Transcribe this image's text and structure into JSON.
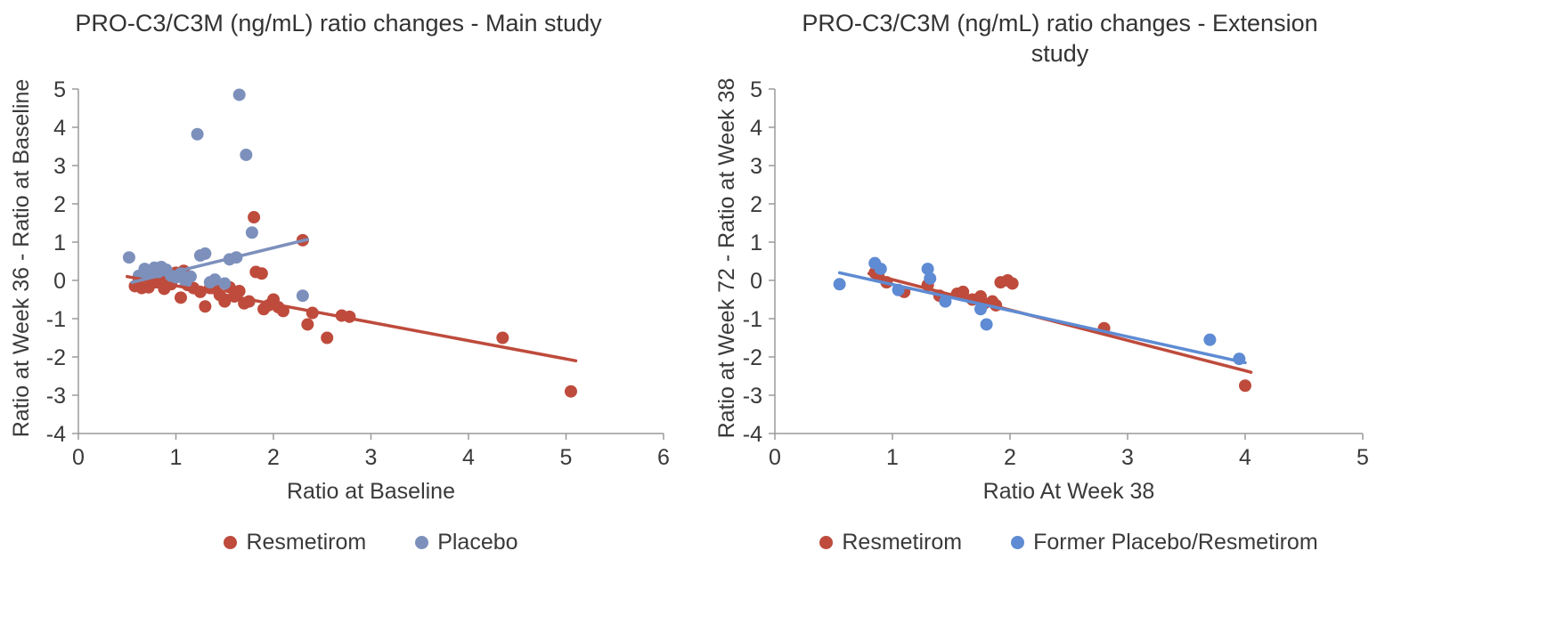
{
  "chart_data": [
    {
      "type": "scatter",
      "title": "PRO-C3/C3M (ng/mL) ratio changes - Main study",
      "xlabel": "Ratio at Baseline",
      "ylabel": "Ratio at Week 36 - Ratio at Baseline",
      "xlim": [
        0,
        6
      ],
      "ylim": [
        -4,
        5
      ],
      "xticks": [
        0,
        1,
        2,
        3,
        4,
        5,
        6
      ],
      "yticks": [
        5,
        4,
        3,
        2,
        1,
        0,
        -1,
        -2,
        -3,
        -4
      ],
      "grid": false,
      "legend_position": "bottom",
      "series": [
        {
          "name": "Resmetirom",
          "color": "#BE4B3C",
          "points": [
            [
              0.58,
              -0.15
            ],
            [
              0.62,
              0.05
            ],
            [
              0.65,
              -0.2
            ],
            [
              0.7,
              0.1
            ],
            [
              0.72,
              -0.18
            ],
            [
              0.78,
              0.28
            ],
            [
              0.8,
              -0.05
            ],
            [
              0.85,
              0.15
            ],
            [
              0.88,
              -0.22
            ],
            [
              0.92,
              0.05
            ],
            [
              0.95,
              -0.1
            ],
            [
              1.0,
              0.2
            ],
            [
              1.05,
              -0.45
            ],
            [
              1.08,
              0.25
            ],
            [
              1.12,
              -0.12
            ],
            [
              1.18,
              -0.2
            ],
            [
              1.25,
              -0.3
            ],
            [
              1.3,
              -0.68
            ],
            [
              1.35,
              -0.2
            ],
            [
              1.42,
              -0.1
            ],
            [
              1.45,
              -0.38
            ],
            [
              1.5,
              -0.55
            ],
            [
              1.55,
              -0.18
            ],
            [
              1.6,
              -0.42
            ],
            [
              1.65,
              -0.28
            ],
            [
              1.7,
              -0.6
            ],
            [
              1.75,
              -0.55
            ],
            [
              1.8,
              1.65
            ],
            [
              1.82,
              0.22
            ],
            [
              1.88,
              0.18
            ],
            [
              1.9,
              -0.75
            ],
            [
              1.95,
              -0.65
            ],
            [
              2.0,
              -0.5
            ],
            [
              2.05,
              -0.7
            ],
            [
              2.1,
              -0.8
            ],
            [
              2.3,
              1.05
            ],
            [
              2.35,
              -1.15
            ],
            [
              2.4,
              -0.85
            ],
            [
              2.55,
              -1.5
            ],
            [
              2.7,
              -0.92
            ],
            [
              2.78,
              -0.95
            ],
            [
              4.35,
              -1.5
            ],
            [
              5.05,
              -2.9
            ]
          ],
          "trend": [
            [
              0.5,
              0.1
            ],
            [
              5.1,
              -2.1
            ]
          ]
        },
        {
          "name": "Placebo",
          "color": "#7D90BC",
          "points": [
            [
              0.52,
              0.6
            ],
            [
              0.62,
              0.12
            ],
            [
              0.68,
              0.3
            ],
            [
              0.72,
              0.2
            ],
            [
              0.78,
              0.33
            ],
            [
              0.82,
              0.22
            ],
            [
              0.85,
              0.35
            ],
            [
              0.9,
              0.28
            ],
            [
              0.95,
              0.12
            ],
            [
              1.0,
              0.08
            ],
            [
              1.05,
              0.18
            ],
            [
              1.1,
              -0.05
            ],
            [
              1.15,
              0.1
            ],
            [
              1.22,
              3.82
            ],
            [
              1.25,
              0.65
            ],
            [
              1.3,
              0.7
            ],
            [
              1.35,
              -0.05
            ],
            [
              1.4,
              0.02
            ],
            [
              1.5,
              -0.08
            ],
            [
              1.55,
              0.55
            ],
            [
              1.62,
              0.6
            ],
            [
              1.65,
              4.85
            ],
            [
              1.72,
              3.28
            ],
            [
              1.78,
              1.25
            ],
            [
              2.3,
              -0.4
            ]
          ],
          "trend": [
            [
              0.55,
              -0.05
            ],
            [
              2.35,
              1.07
            ]
          ]
        }
      ]
    },
    {
      "type": "scatter",
      "title": "PRO-C3/C3M (ng/mL) ratio changes - Extension study",
      "xlabel": "Ratio At Week 38",
      "ylabel": "Ratio at Week 72 - Ratio at Week 38",
      "xlim": [
        0,
        5
      ],
      "ylim": [
        -4,
        5
      ],
      "xticks": [
        0,
        1,
        2,
        3,
        4,
        5
      ],
      "yticks": [
        5,
        4,
        3,
        2,
        1,
        0,
        -1,
        -2,
        -3,
        -4
      ],
      "grid": false,
      "legend_position": "bottom",
      "series": [
        {
          "name": "Resmetirom",
          "color": "#BE4B3C",
          "points": [
            [
              0.85,
              0.2
            ],
            [
              0.88,
              0.12
            ],
            [
              0.95,
              -0.05
            ],
            [
              1.1,
              -0.3
            ],
            [
              1.3,
              -0.12
            ],
            [
              1.4,
              -0.4
            ],
            [
              1.55,
              -0.35
            ],
            [
              1.6,
              -0.3
            ],
            [
              1.68,
              -0.5
            ],
            [
              1.75,
              -0.42
            ],
            [
              1.78,
              -0.6
            ],
            [
              1.85,
              -0.55
            ],
            [
              1.88,
              -0.65
            ],
            [
              1.92,
              -0.05
            ],
            [
              1.98,
              0.0
            ],
            [
              2.02,
              -0.08
            ],
            [
              2.8,
              -1.25
            ],
            [
              4.0,
              -2.75
            ]
          ],
          "trend": [
            [
              0.8,
              0.18
            ],
            [
              4.05,
              -2.4
            ]
          ]
        },
        {
          "name": "Former Placebo/Resmetirom",
          "color": "#5E8BD3",
          "points": [
            [
              0.55,
              -0.1
            ],
            [
              0.85,
              0.45
            ],
            [
              0.9,
              0.3
            ],
            [
              1.05,
              -0.25
            ],
            [
              1.3,
              0.3
            ],
            [
              1.32,
              0.05
            ],
            [
              1.45,
              -0.55
            ],
            [
              1.75,
              -0.75
            ],
            [
              1.8,
              -1.15
            ],
            [
              3.7,
              -1.55
            ],
            [
              3.95,
              -2.05
            ]
          ],
          "trend": [
            [
              0.55,
              0.2
            ],
            [
              4.0,
              -2.15
            ]
          ]
        }
      ]
    }
  ]
}
